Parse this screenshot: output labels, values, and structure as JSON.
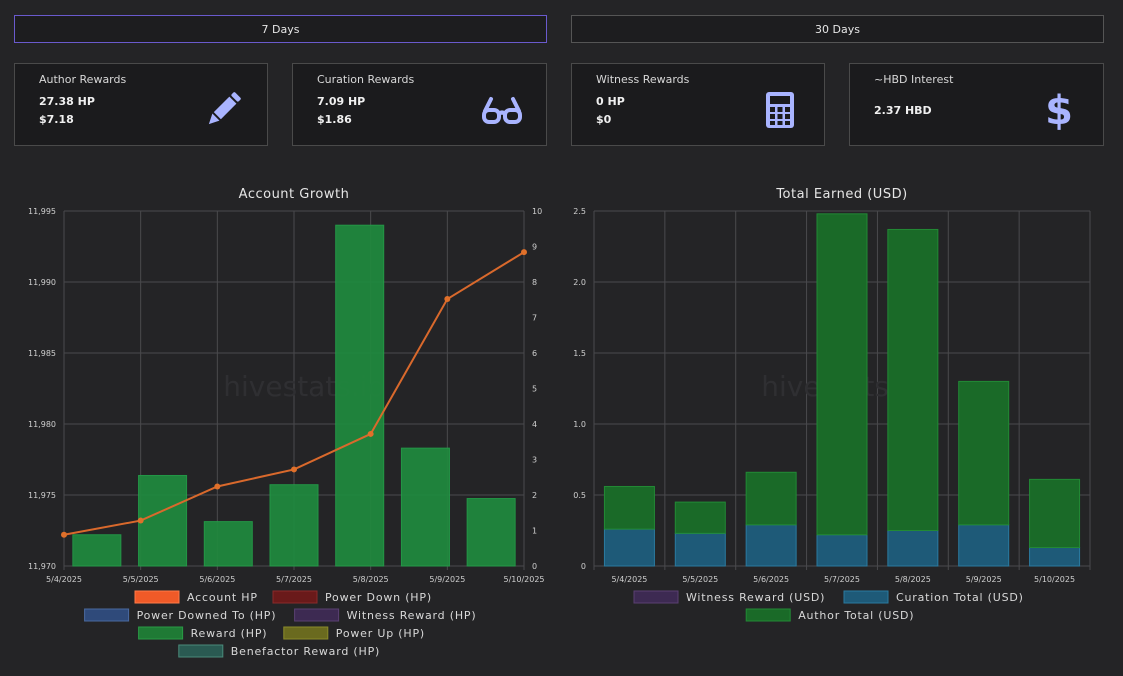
{
  "buttons": {
    "seven_days": "7 Days",
    "thirty_days": "30 Days"
  },
  "cards": [
    {
      "title": "Author Rewards",
      "v1": "27.38 HP",
      "v2": "$7.18",
      "icon": "pencil-icon"
    },
    {
      "title": "Curation Rewards",
      "v1": "7.09 HP",
      "v2": "$1.86",
      "icon": "glasses-icon"
    },
    {
      "title": "Witness Rewards",
      "v1": "0 HP",
      "v2": "$0",
      "icon": "calculator-icon"
    },
    {
      "title": "~HBD Interest",
      "v1": "2.37 HBD",
      "v2": "",
      "icon": "dollar-icon"
    }
  ],
  "colors": {
    "accent": "#6a5acd",
    "icon": "#a9b4ff",
    "reward_bar": "#1f8a3e",
    "line": "#e0702a"
  },
  "chart_data": [
    {
      "type": "bar+line",
      "title": "Account Growth",
      "watermark": "hivestats.io",
      "categories": [
        "5/4/2025",
        "5/5/2025",
        "5/6/2025",
        "5/7/2025",
        "5/8/2025",
        "5/9/2025",
        "5/10/2025"
      ],
      "left_axis": {
        "min": 11970,
        "max": 11995,
        "ticks": [
          "11,970",
          "11,975",
          "11,980",
          "11,985",
          "11,990",
          "11,995"
        ]
      },
      "right_axis": {
        "min": 0,
        "max": 10,
        "ticks": [
          "0",
          "1",
          "2",
          "3",
          "4",
          "5",
          "6",
          "7",
          "8",
          "9",
          "10"
        ]
      },
      "line_series": {
        "name": "Account HP",
        "axis": "left",
        "values": [
          11972.2,
          11973.2,
          11975.6,
          11976.8,
          11979.3,
          11988.8,
          11992.1
        ]
      },
      "bar_series": {
        "name": "Reward (HP)",
        "axis": "right",
        "values": [
          0.88,
          2.55,
          1.25,
          2.29,
          9.6,
          3.32,
          1.9
        ]
      },
      "legend": [
        {
          "label": "Account HP",
          "fill": "#f05a28",
          "border": "#ff7a48"
        },
        {
          "label": "Power Down (HP)",
          "fill": "#6a1a1a",
          "border": "#8a2a2a"
        },
        {
          "label": "Power Downed To (HP)",
          "fill": "#2f4a7a",
          "border": "#4a6aa0"
        },
        {
          "label": "Witness Reward (HP)",
          "fill": "#3d2a52",
          "border": "#5a4072"
        },
        {
          "label": "Reward (HP)",
          "fill": "#1f7a35",
          "border": "#2a9a45"
        },
        {
          "label": "Power Up (HP)",
          "fill": "#6a6a1f",
          "border": "#8a8a2a"
        },
        {
          "label": "Benefactor Reward (HP)",
          "fill": "#2a5a52",
          "border": "#4a8a7a"
        }
      ]
    },
    {
      "type": "stacked-bar",
      "title": "Total Earned (USD)",
      "watermark": "hivestats.io",
      "categories": [
        "5/4/2025",
        "5/5/2025",
        "5/6/2025",
        "5/7/2025",
        "5/8/2025",
        "5/9/2025",
        "5/10/2025"
      ],
      "y_axis": {
        "min": 0,
        "max": 2.5,
        "ticks": [
          "0",
          "0.5",
          "1.0",
          "1.5",
          "2.0",
          "2.5"
        ]
      },
      "series": [
        {
          "name": "Curation Total (USD)",
          "values": [
            0.26,
            0.23,
            0.29,
            0.22,
            0.25,
            0.29,
            0.13
          ]
        },
        {
          "name": "Author Total (USD)",
          "values": [
            0.3,
            0.22,
            0.37,
            2.26,
            2.12,
            1.01,
            0.48
          ]
        }
      ],
      "legend": [
        {
          "label": "Witness Reward (USD)",
          "fill": "#3d2a52",
          "border": "#5a4072"
        },
        {
          "label": "Curation Total (USD)",
          "fill": "#1e5a78",
          "border": "#2a7aa0"
        },
        {
          "label": "Author Total (USD)",
          "fill": "#1a6a28",
          "border": "#228a35"
        }
      ]
    }
  ]
}
